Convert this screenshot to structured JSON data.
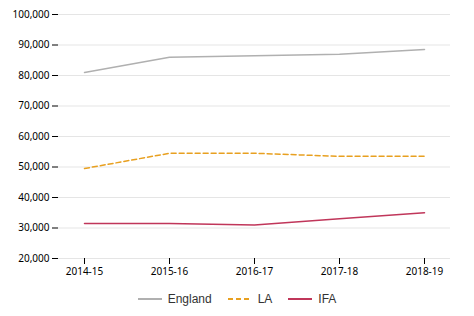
{
  "chart_data": {
    "type": "line",
    "categories": [
      "2014-15",
      "2015-16",
      "2016-17",
      "2017-18",
      "2018-19"
    ],
    "series": [
      {
        "name": "England",
        "color": "#b0b0b0",
        "line_style": "solid",
        "values": [
          81000,
          86000,
          86500,
          87000,
          88500
        ]
      },
      {
        "name": "LA",
        "color": "#e8a020",
        "line_style": "dashed",
        "values": [
          49500,
          54500,
          54500,
          53500,
          53500
        ]
      },
      {
        "name": "IFA",
        "color": "#c0365a",
        "line_style": "solid",
        "values": [
          31500,
          31500,
          31000,
          33000,
          35000
        ]
      }
    ],
    "ylim": [
      20000,
      100000
    ],
    "yticks": [
      {
        "value": 20000,
        "label": "20,000"
      },
      {
        "value": 30000,
        "label": "30,000"
      },
      {
        "value": 40000,
        "label": "40,000"
      },
      {
        "value": 50000,
        "label": "50,000"
      },
      {
        "value": 60000,
        "label": "60,000"
      },
      {
        "value": 70000,
        "label": "70,000"
      },
      {
        "value": 80000,
        "label": "80,000"
      },
      {
        "value": 90000,
        "label": "90,000"
      },
      {
        "value": 100000,
        "label": "100,000"
      }
    ],
    "grid": true,
    "legend": "bottom"
  }
}
